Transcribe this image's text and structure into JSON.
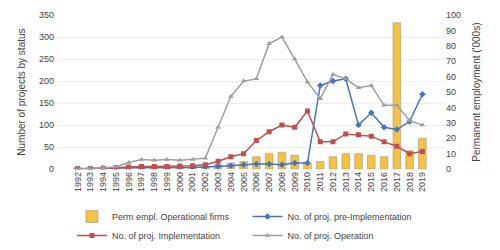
{
  "chart_data": {
    "type": "bar",
    "categories": [
      "1992",
      "1993",
      "1994",
      "1995",
      "1996",
      "1997",
      "1998",
      "1999",
      "2000",
      "2001",
      "2002",
      "2003",
      "2004",
      "2005",
      "2006",
      "2007",
      "2008",
      "2009",
      "2010",
      "2011",
      "2012",
      "2013",
      "2014",
      "2015",
      "2016",
      "2017",
      "2018",
      "2019"
    ],
    "series": [
      {
        "name": "Perm empl. Operational firms",
        "type": "bar",
        "axis": "y2",
        "color": "#f5c242",
        "values": [
          1,
          1,
          1,
          1,
          2,
          2,
          2,
          2,
          2,
          2,
          2,
          3,
          4,
          5,
          8,
          10,
          11,
          9,
          4,
          5,
          8,
          10,
          10,
          9,
          8,
          95,
          12,
          20
        ]
      },
      {
        "name": "No. of proj. pre-Implementation",
        "type": "line",
        "color": "#4472c4",
        "marker": "diamond",
        "values": [
          1,
          1,
          2,
          2,
          3,
          3,
          3,
          3,
          4,
          4,
          5,
          6,
          8,
          10,
          12,
          12,
          10,
          14,
          14,
          190,
          200,
          205,
          100,
          128,
          95,
          90,
          108,
          170
        ]
      },
      {
        "name": "No. of proj. Implementation",
        "type": "line",
        "color": "#c0504d",
        "marker": "square",
        "values": [
          1,
          1,
          2,
          3,
          5,
          6,
          6,
          6,
          7,
          8,
          10,
          18,
          28,
          35,
          65,
          85,
          100,
          95,
          132,
          62,
          62,
          80,
          78,
          75,
          62,
          52,
          35,
          40
        ]
      },
      {
        "name": "No. of proj. Operation",
        "type": "line",
        "color": "#9e9e9e",
        "marker": "triangle-up",
        "values": [
          1,
          1,
          3,
          5,
          15,
          22,
          20,
          22,
          20,
          22,
          25,
          95,
          165,
          200,
          205,
          285,
          300,
          250,
          198,
          160,
          215,
          205,
          185,
          190,
          145,
          145,
          110,
          100
        ]
      }
    ],
    "ylabel": "Number of projects by status",
    "y2label": "Permanent employment ('000s)",
    "ylim": [
      0,
      350
    ],
    "yticks": [
      0,
      50,
      100,
      150,
      200,
      250,
      300,
      350
    ],
    "y2lim": [
      0,
      100
    ],
    "y2ticks": [
      0,
      10,
      20,
      30,
      40,
      50,
      60,
      70,
      80,
      90,
      100
    ],
    "grid": true,
    "legend": "bottom"
  }
}
